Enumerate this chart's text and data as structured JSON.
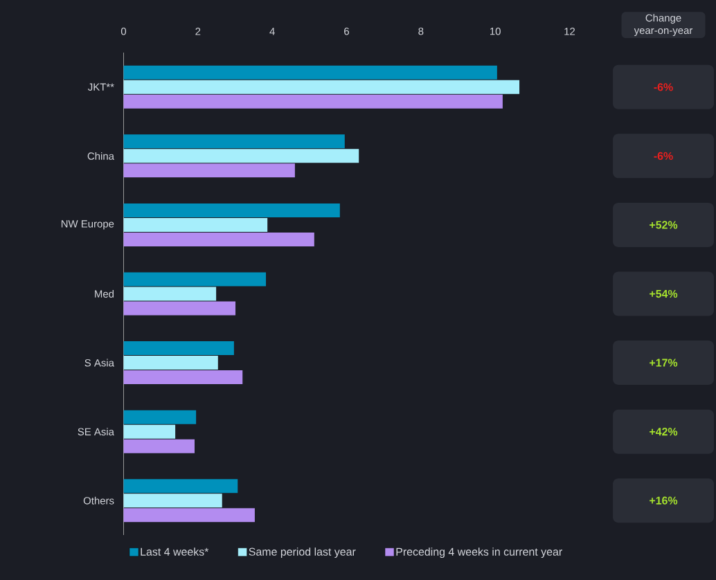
{
  "chart_data": {
    "type": "bar",
    "orientation": "horizontal",
    "categories": [
      "JKT**",
      "China",
      "NW Europe",
      "Med",
      "S Asia",
      "SE Asia",
      "Others"
    ],
    "series": [
      {
        "name": "Last 4 weeks*",
        "color": "#0091bb",
        "values": [
          10.05,
          5.95,
          5.82,
          3.83,
          2.97,
          1.95,
          3.07
        ]
      },
      {
        "name": "Same period last year",
        "color": "#a6eefb",
        "values": [
          10.65,
          6.33,
          3.87,
          2.49,
          2.54,
          1.39,
          2.65
        ]
      },
      {
        "name": "Preceding 4 weeks in current year",
        "color": "#b38cf0",
        "values": [
          10.2,
          4.61,
          5.13,
          3.01,
          3.2,
          1.91,
          3.53
        ]
      }
    ],
    "xlim": [
      0,
      12
    ],
    "xticks": [
      0,
      2,
      4,
      6,
      8,
      10,
      12
    ],
    "legend": "bottom",
    "grid": false,
    "annotations": [
      "Change year-on-year",
      "-6%",
      "-6%",
      "+52%",
      "+54%",
      "+17%",
      "+42%",
      "+16%"
    ]
  }
}
